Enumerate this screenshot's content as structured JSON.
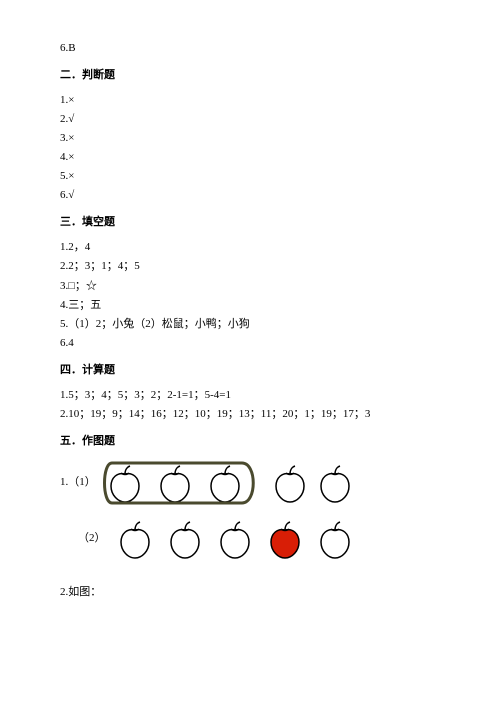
{
  "top_answer": "6.B",
  "sections": {
    "s2": {
      "title": "二．判断题",
      "lines": [
        "1.×",
        "2.√",
        "3.×",
        "4.×",
        "5.×",
        "6.√"
      ]
    },
    "s3": {
      "title": "三．填空题",
      "lines": [
        "1.2，4",
        "2.2；3；1；4；5",
        "3.□；☆",
        "4.三；五",
        "5.（1）2；小兔（2）松鼠；小鸭；小狗",
        "6.4"
      ]
    },
    "s4": {
      "title": "四．计算题",
      "lines": [
        "1.5；3；4；5；3；2；2-1=1；5-4=1",
        "2.10；19；9；14；16；12；10；19；13；11；20；1；19；17；3"
      ]
    },
    "s5": {
      "title": "五．作图题",
      "row1_label": "1.（1）",
      "row2_label": "（2）",
      "footer": "2.如图："
    }
  },
  "apple": {
    "outline_color": "#000000",
    "fill_white": "#ffffff",
    "fill_red": "#d81e06",
    "stroke_width": 1.5,
    "circle_stroke": "#4a4a2e",
    "circle_stroke_width": 3
  }
}
